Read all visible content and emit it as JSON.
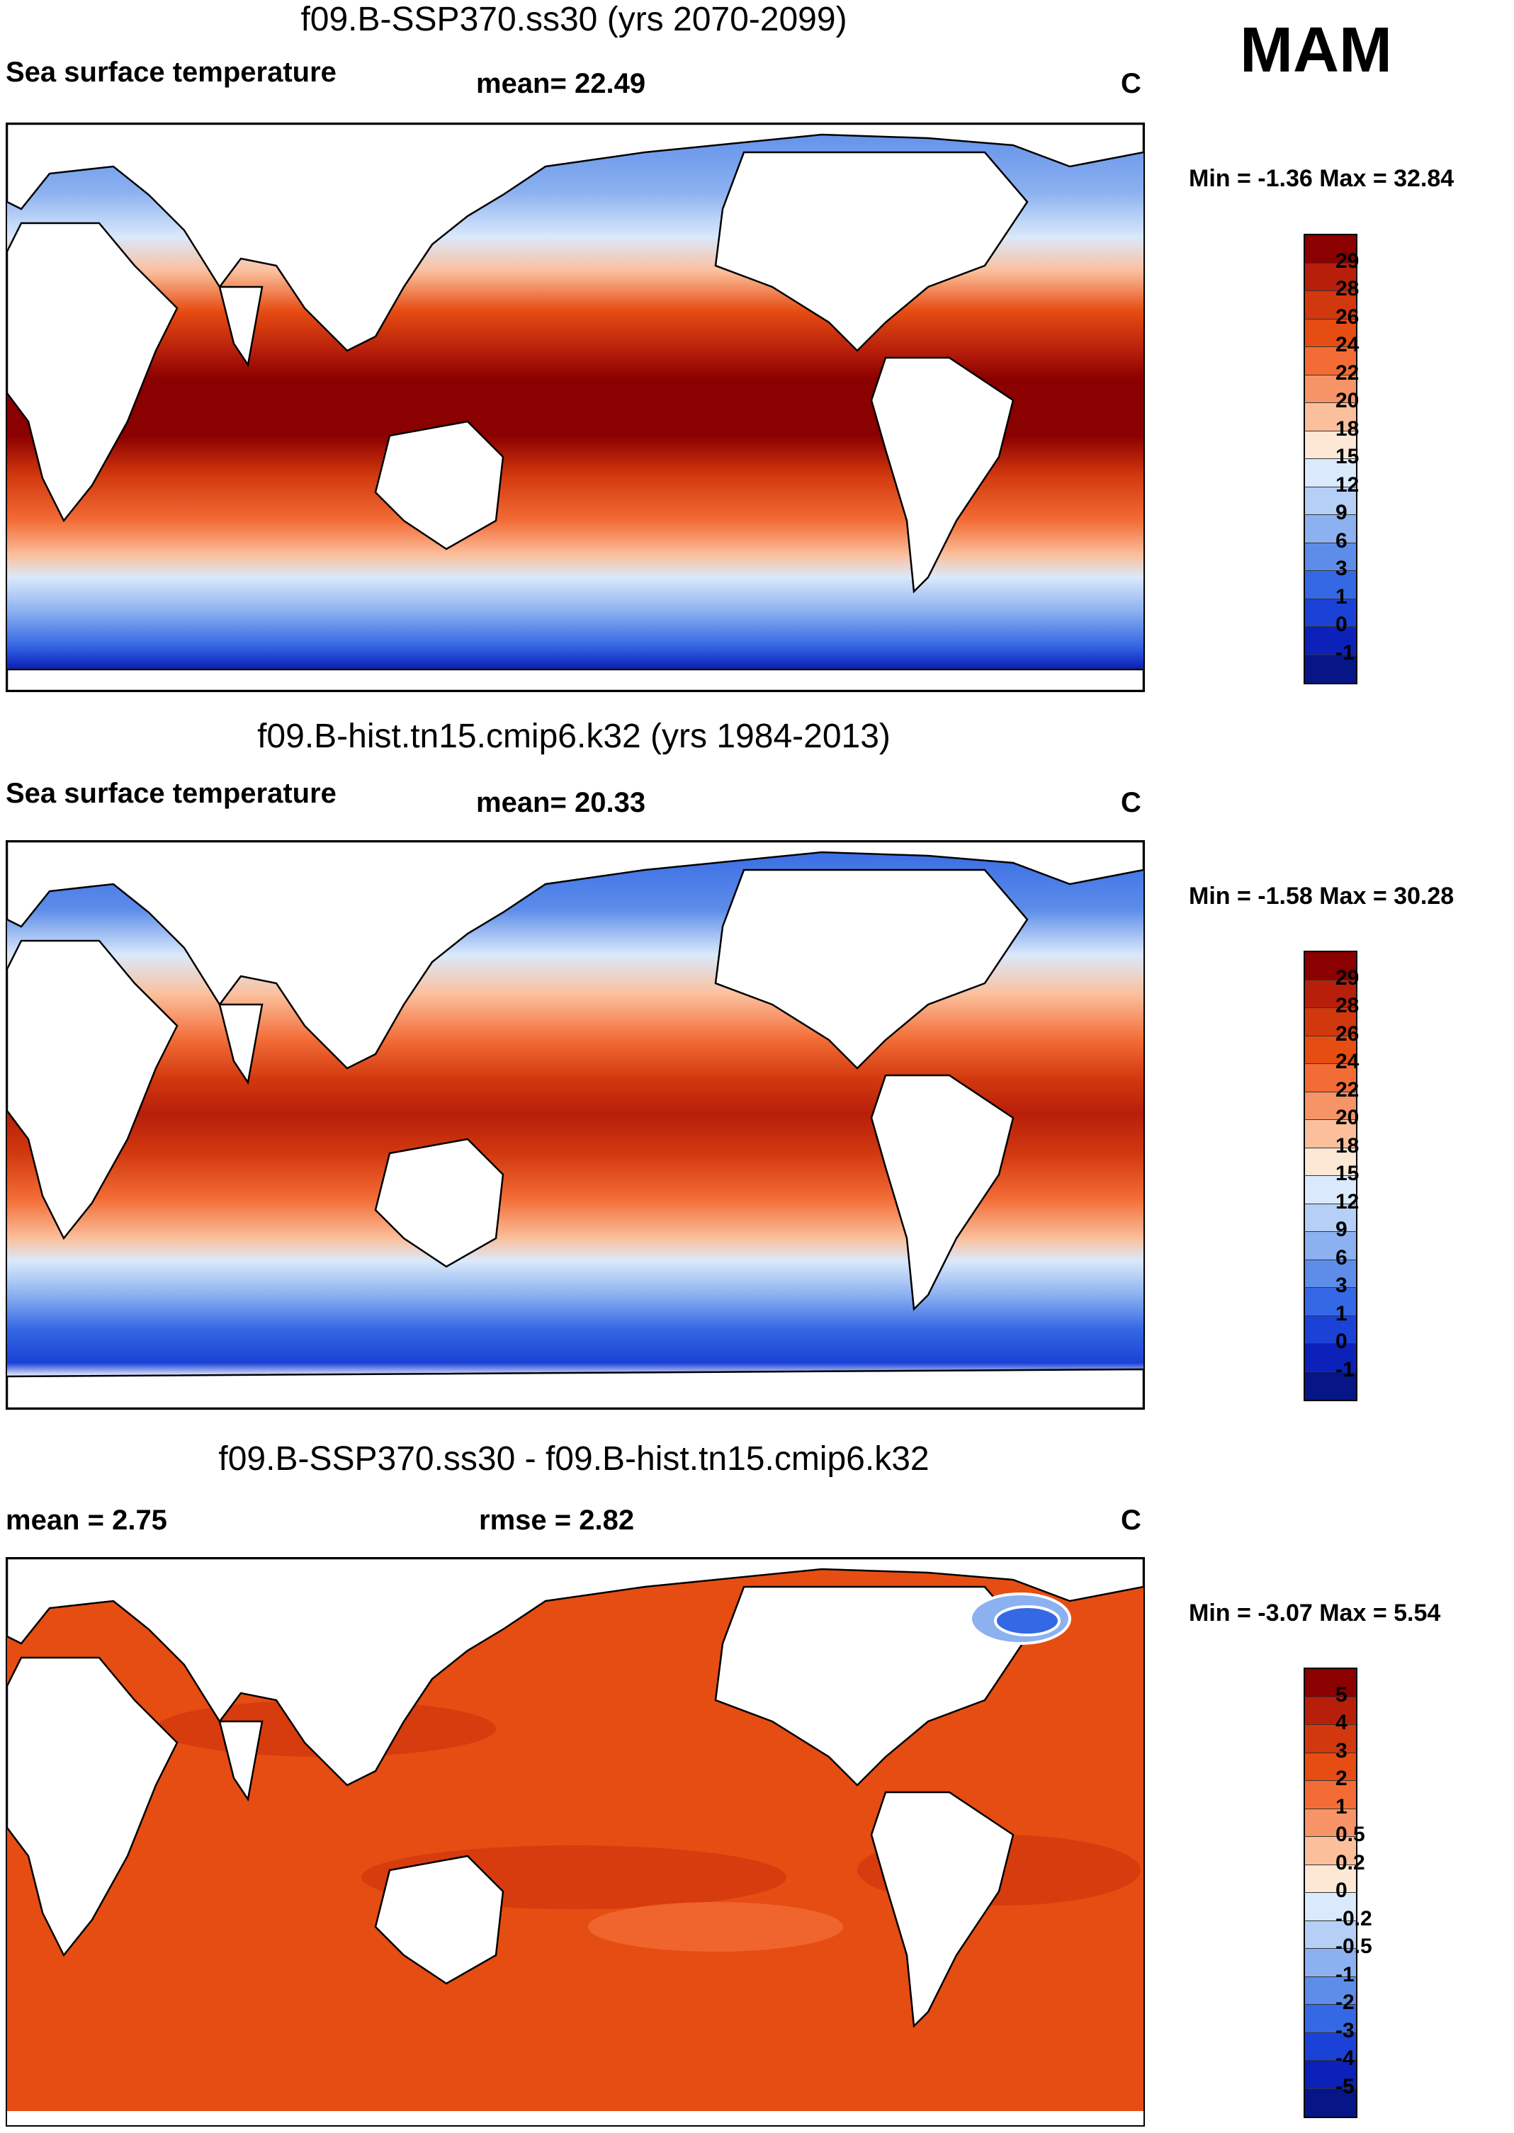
{
  "season": "MAM",
  "panels": [
    {
      "id": "future",
      "title": "f09.B-SSP370.ss30 (yrs 2070-2099)",
      "variable": "Sea surface temperature",
      "stat": "mean=  22.49",
      "units": "C",
      "minmax": "Min =  -1.36 Max =  32.84",
      "colorbar": {
        "labels": [
          "29",
          "28",
          "26",
          "24",
          "22",
          "20",
          "18",
          "15",
          "12",
          "9",
          "6",
          "3",
          "1",
          "0",
          "-1"
        ],
        "colors": [
          "#8b0000",
          "#b71f0b",
          "#d2380e",
          "#e64d12",
          "#f36c36",
          "#f79467",
          "#fbbf9c",
          "#fde7d5",
          "#dae9fb",
          "#b5cff6",
          "#8cb1f0",
          "#5d8de9",
          "#3568e4",
          "#1b42d6",
          "#0b21b9",
          "#061687"
        ]
      }
    },
    {
      "id": "historical",
      "title": "f09.B-hist.tn15.cmip6.k32 (yrs 1984-2013)",
      "variable": "Sea surface temperature",
      "stat": "mean=  20.33",
      "units": "C",
      "minmax": "Min =  -1.58 Max =  30.28",
      "colorbar": {
        "labels": [
          "29",
          "28",
          "26",
          "24",
          "22",
          "20",
          "18",
          "15",
          "12",
          "9",
          "6",
          "3",
          "1",
          "0",
          "-1"
        ],
        "colors": [
          "#8b0000",
          "#b71f0b",
          "#d2380e",
          "#e64d12",
          "#f36c36",
          "#f79467",
          "#fbbf9c",
          "#fde7d5",
          "#dae9fb",
          "#b5cff6",
          "#8cb1f0",
          "#5d8de9",
          "#3568e4",
          "#1b42d6",
          "#0b21b9",
          "#061687"
        ]
      }
    },
    {
      "id": "difference",
      "title": "f09.B-SSP370.ss30 - f09.B-hist.tn15.cmip6.k32",
      "mean_label": "mean =   2.75",
      "rmse_label": "rmse =   2.82",
      "units": "C",
      "minmax": "Min =  -3.07 Max =   5.54",
      "colorbar": {
        "labels": [
          "5",
          "4",
          "3",
          "2",
          "1",
          "0.5",
          "0.2",
          "0",
          "-0.2",
          "-0.5",
          "-1",
          "-2",
          "-3",
          "-4",
          "-5"
        ],
        "colors": [
          "#8b0000",
          "#b71f0b",
          "#d2380e",
          "#e64d12",
          "#f36c36",
          "#f79467",
          "#fbbf9c",
          "#fde7d5",
          "#dae9fb",
          "#b5cff6",
          "#8cb1f0",
          "#5d8de9",
          "#3568e4",
          "#1b42d6",
          "#0b21b9",
          "#061687"
        ]
      }
    }
  ]
}
